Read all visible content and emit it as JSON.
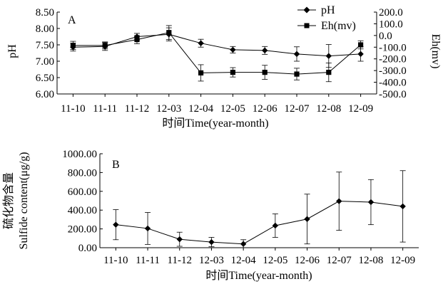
{
  "chart_data": [
    {
      "panel": "A",
      "type": "line",
      "categories": [
        "11-10",
        "11-11",
        "11-12",
        "12-03",
        "12-04",
        "12-05",
        "12-06",
        "12-07",
        "12-08",
        "12-09"
      ],
      "xlabel": "时间Time(year-month)",
      "ylabel_left": "pH",
      "ylabel_right": "Eh(mv)",
      "ylim_left": [
        6.0,
        8.5
      ],
      "yticks_left": [
        "6.00",
        "6.50",
        "7.00",
        "7.50",
        "8.00",
        "8.50"
      ],
      "ylim_right": [
        -500,
        200
      ],
      "yticks_right": [
        "-500.0",
        "-400.0",
        "-300.0",
        "-200.0",
        "-100.0",
        "0.0",
        "100.0",
        "200.0"
      ],
      "legend": {
        "position": "top-right",
        "entries": [
          "pH",
          "Eh(mv)"
        ]
      },
      "series": [
        {
          "name": "pH",
          "axis": "left",
          "marker": "diamond",
          "values": [
            7.43,
            7.45,
            7.75,
            7.82,
            7.55,
            7.35,
            7.33,
            7.22,
            7.16,
            7.22
          ],
          "errors": [
            0.12,
            0.12,
            0.1,
            0.2,
            0.12,
            0.1,
            0.12,
            0.22,
            0.35,
            0.22
          ]
        },
        {
          "name": "Eh(mv)",
          "axis": "right",
          "marker": "square",
          "values": [
            -85,
            -85,
            -35,
            25,
            -320,
            -315,
            -315,
            -330,
            -315,
            -80
          ],
          "errors": [
            35,
            30,
            35,
            60,
            70,
            40,
            60,
            50,
            80,
            35
          ]
        }
      ]
    },
    {
      "panel": "B",
      "type": "line",
      "categories": [
        "11-10",
        "11-11",
        "11-12",
        "12-03",
        "12-04",
        "12-05",
        "12-06",
        "12-07",
        "12-08",
        "12-09"
      ],
      "xlabel": "时间Time(year-month)",
      "ylabel_line1": "硫化物含量",
      "ylabel_line2": "Sulfide content(μg/g)",
      "ylim": [
        0,
        1000
      ],
      "yticks": [
        "0.00",
        "200.00",
        "400.00",
        "600.00",
        "800.00",
        "1000.00"
      ],
      "series": [
        {
          "marker": "diamond",
          "values": [
            245,
            205,
            90,
            60,
            40,
            235,
            305,
            495,
            485,
            440
          ],
          "errors": [
            160,
            170,
            75,
            50,
            45,
            125,
            265,
            310,
            240,
            380
          ]
        }
      ]
    }
  ]
}
